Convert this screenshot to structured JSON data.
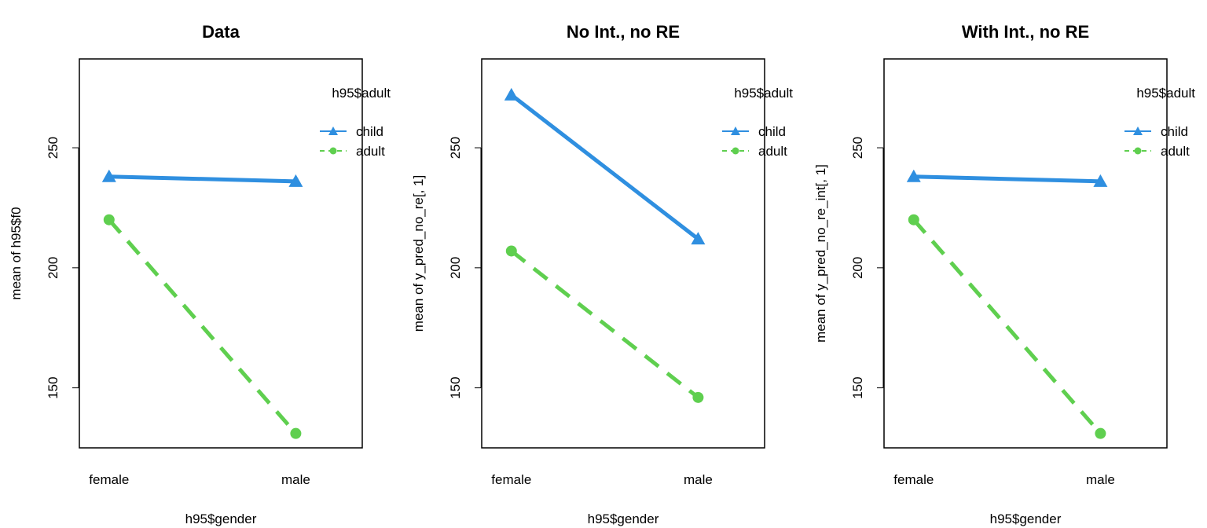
{
  "chart_data": [
    {
      "type": "line",
      "title": "Data",
      "xlabel": "h95$gender",
      "ylabel": "mean of  h95$f0",
      "categories": [
        "female",
        "male"
      ],
      "ylim": [
        125,
        287
      ],
      "yticks": [
        150,
        200,
        250
      ],
      "grid": false,
      "legend": {
        "title": "h95$adult",
        "position": "top-right"
      },
      "series": [
        {
          "name": "child",
          "values": [
            238,
            236
          ],
          "color": "#2F8FE0",
          "line": "solid",
          "marker": "triangle"
        },
        {
          "name": "adult",
          "values": [
            220,
            131
          ],
          "color": "#5FCF4F",
          "line": "dashed",
          "marker": "circle"
        }
      ]
    },
    {
      "type": "line",
      "title": "No Int., no RE",
      "xlabel": "h95$gender",
      "ylabel": "mean of  y_pred_no_re[, 1]",
      "categories": [
        "female",
        "male"
      ],
      "ylim": [
        125,
        287
      ],
      "yticks": [
        150,
        200,
        250
      ],
      "grid": false,
      "legend": {
        "title": "h95$adult",
        "position": "top-right"
      },
      "series": [
        {
          "name": "child",
          "values": [
            272,
            212
          ],
          "color": "#2F8FE0",
          "line": "solid",
          "marker": "triangle"
        },
        {
          "name": "adult",
          "values": [
            207,
            146
          ],
          "color": "#5FCF4F",
          "line": "dashed",
          "marker": "circle"
        }
      ]
    },
    {
      "type": "line",
      "title": "With Int., no RE",
      "xlabel": "h95$gender",
      "ylabel": "mean of  y_pred_no_re_int[, 1]",
      "categories": [
        "female",
        "male"
      ],
      "ylim": [
        125,
        287
      ],
      "yticks": [
        150,
        200,
        250
      ],
      "grid": false,
      "legend": {
        "title": "h95$adult",
        "position": "top-right"
      },
      "series": [
        {
          "name": "child",
          "values": [
            238,
            236
          ],
          "color": "#2F8FE0",
          "line": "solid",
          "marker": "triangle"
        },
        {
          "name": "adult",
          "values": [
            220,
            131
          ],
          "color": "#5FCF4F",
          "line": "dashed",
          "marker": "circle"
        }
      ]
    }
  ]
}
